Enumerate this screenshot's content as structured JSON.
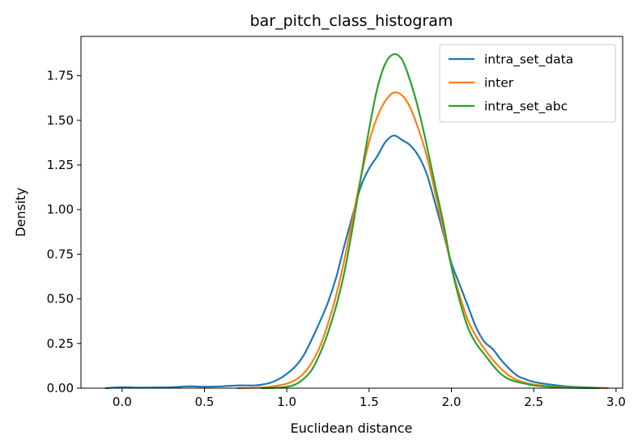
{
  "chart_data": {
    "type": "line",
    "title": "bar_pitch_class_histogram",
    "xlabel": "Euclidean distance",
    "ylabel": "Density",
    "xlim": [
      -0.25,
      3.04
    ],
    "ylim": [
      0,
      1.97
    ],
    "xticks": [
      0.0,
      0.5,
      1.0,
      1.5,
      2.0,
      2.5,
      3.0
    ],
    "xtick_labels": [
      "0.0",
      "0.5",
      "1.0",
      "1.5",
      "2.0",
      "2.5",
      "3.0"
    ],
    "yticks": [
      0.0,
      0.25,
      0.5,
      0.75,
      1.0,
      1.25,
      1.5,
      1.75
    ],
    "ytick_labels": [
      "0.00",
      "0.25",
      "0.50",
      "0.75",
      "1.00",
      "1.25",
      "1.50",
      "1.75"
    ],
    "legend_position": "top-right",
    "grid": false,
    "series": [
      {
        "name": "intra_set_data",
        "color": "#1f77b4",
        "points": [
          [
            -0.1,
            0.0
          ],
          [
            0.0,
            0.005
          ],
          [
            0.1,
            0.003
          ],
          [
            0.2,
            0.004
          ],
          [
            0.3,
            0.005
          ],
          [
            0.4,
            0.01
          ],
          [
            0.5,
            0.008
          ],
          [
            0.6,
            0.01
          ],
          [
            0.7,
            0.015
          ],
          [
            0.8,
            0.015
          ],
          [
            0.85,
            0.02
          ],
          [
            0.9,
            0.03
          ],
          [
            0.95,
            0.05
          ],
          [
            1.0,
            0.08
          ],
          [
            1.05,
            0.12
          ],
          [
            1.1,
            0.18
          ],
          [
            1.15,
            0.27
          ],
          [
            1.2,
            0.37
          ],
          [
            1.25,
            0.48
          ],
          [
            1.3,
            0.62
          ],
          [
            1.35,
            0.8
          ],
          [
            1.4,
            0.97
          ],
          [
            1.45,
            1.13
          ],
          [
            1.5,
            1.23
          ],
          [
            1.55,
            1.3
          ],
          [
            1.6,
            1.38
          ],
          [
            1.65,
            1.415
          ],
          [
            1.7,
            1.39
          ],
          [
            1.75,
            1.36
          ],
          [
            1.8,
            1.3
          ],
          [
            1.85,
            1.2
          ],
          [
            1.9,
            1.04
          ],
          [
            1.95,
            0.87
          ],
          [
            2.0,
            0.7
          ],
          [
            2.05,
            0.58
          ],
          [
            2.1,
            0.46
          ],
          [
            2.15,
            0.34
          ],
          [
            2.2,
            0.26
          ],
          [
            2.25,
            0.22
          ],
          [
            2.3,
            0.16
          ],
          [
            2.35,
            0.11
          ],
          [
            2.4,
            0.07
          ],
          [
            2.45,
            0.05
          ],
          [
            2.5,
            0.035
          ],
          [
            2.6,
            0.02
          ],
          [
            2.7,
            0.01
          ],
          [
            2.8,
            0.005
          ],
          [
            2.9,
            0.002
          ],
          [
            2.95,
            0.0
          ]
        ]
      },
      {
        "name": "inter",
        "color": "#ff7f0e",
        "points": [
          [
            0.7,
            0.0
          ],
          [
            0.8,
            0.002
          ],
          [
            0.9,
            0.008
          ],
          [
            1.0,
            0.025
          ],
          [
            1.05,
            0.045
          ],
          [
            1.1,
            0.08
          ],
          [
            1.15,
            0.14
          ],
          [
            1.2,
            0.23
          ],
          [
            1.25,
            0.36
          ],
          [
            1.3,
            0.52
          ],
          [
            1.35,
            0.72
          ],
          [
            1.4,
            0.95
          ],
          [
            1.45,
            1.18
          ],
          [
            1.5,
            1.38
          ],
          [
            1.55,
            1.52
          ],
          [
            1.6,
            1.61
          ],
          [
            1.65,
            1.655
          ],
          [
            1.7,
            1.64
          ],
          [
            1.75,
            1.57
          ],
          [
            1.8,
            1.45
          ],
          [
            1.85,
            1.3
          ],
          [
            1.9,
            1.1
          ],
          [
            1.95,
            0.89
          ],
          [
            2.0,
            0.68
          ],
          [
            2.05,
            0.52
          ],
          [
            2.1,
            0.38
          ],
          [
            2.15,
            0.29
          ],
          [
            2.2,
            0.22
          ],
          [
            2.25,
            0.16
          ],
          [
            2.3,
            0.11
          ],
          [
            2.35,
            0.07
          ],
          [
            2.4,
            0.045
          ],
          [
            2.45,
            0.03
          ],
          [
            2.5,
            0.02
          ],
          [
            2.6,
            0.01
          ],
          [
            2.7,
            0.005
          ],
          [
            2.8,
            0.002
          ],
          [
            2.95,
            0.0
          ]
        ]
      },
      {
        "name": "intra_set_abc",
        "color": "#2ca02c",
        "points": [
          [
            0.85,
            0.0
          ],
          [
            0.95,
            0.003
          ],
          [
            1.0,
            0.008
          ],
          [
            1.05,
            0.02
          ],
          [
            1.1,
            0.05
          ],
          [
            1.15,
            0.1
          ],
          [
            1.2,
            0.19
          ],
          [
            1.25,
            0.31
          ],
          [
            1.3,
            0.46
          ],
          [
            1.35,
            0.65
          ],
          [
            1.4,
            0.9
          ],
          [
            1.45,
            1.18
          ],
          [
            1.5,
            1.45
          ],
          [
            1.55,
            1.68
          ],
          [
            1.6,
            1.82
          ],
          [
            1.65,
            1.87
          ],
          [
            1.7,
            1.84
          ],
          [
            1.75,
            1.72
          ],
          [
            1.8,
            1.56
          ],
          [
            1.85,
            1.36
          ],
          [
            1.9,
            1.14
          ],
          [
            1.95,
            0.93
          ],
          [
            2.0,
            0.68
          ],
          [
            2.05,
            0.49
          ],
          [
            2.1,
            0.34
          ],
          [
            2.15,
            0.25
          ],
          [
            2.2,
            0.19
          ],
          [
            2.25,
            0.13
          ],
          [
            2.3,
            0.08
          ],
          [
            2.35,
            0.05
          ],
          [
            2.4,
            0.035
          ],
          [
            2.45,
            0.025
          ],
          [
            2.5,
            0.015
          ],
          [
            2.6,
            0.008
          ],
          [
            2.7,
            0.003
          ],
          [
            2.8,
            0.001
          ],
          [
            2.9,
            0.0
          ]
        ]
      }
    ]
  }
}
